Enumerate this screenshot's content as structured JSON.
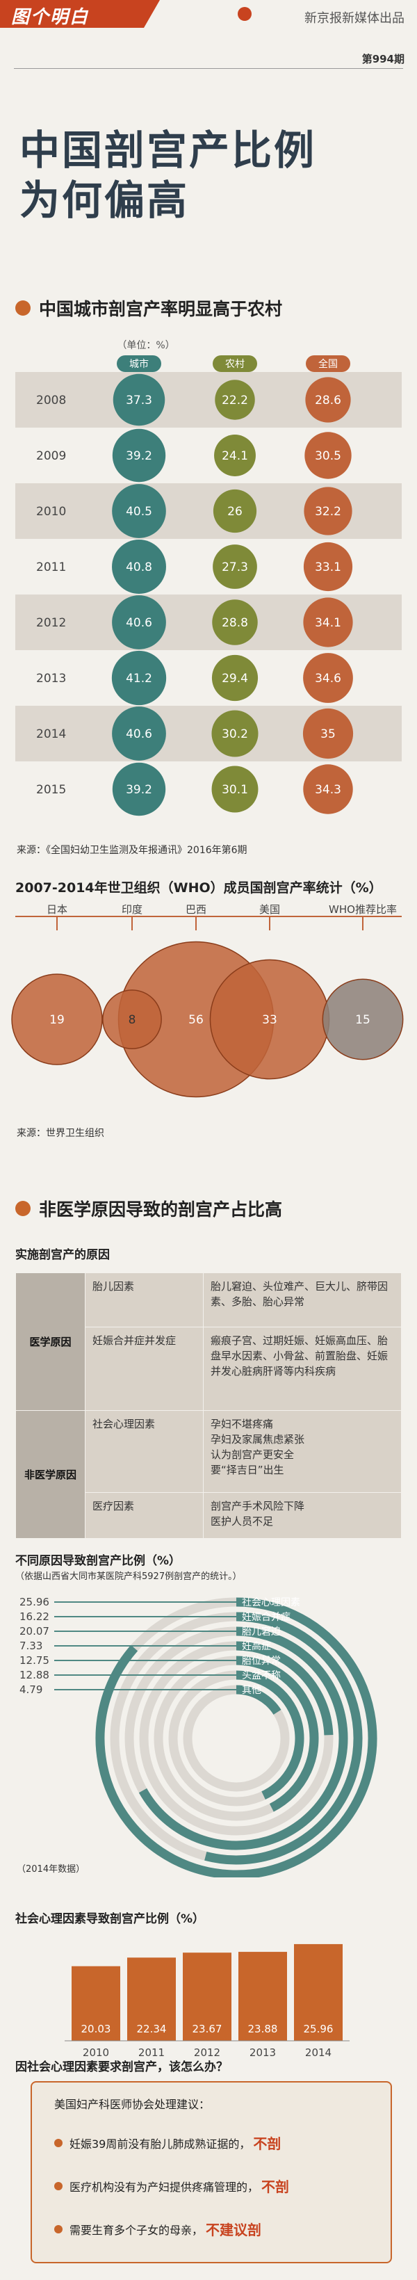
{
  "header": {
    "logo": "图个明白",
    "publisher": "新京报新媒体出品",
    "issue": "第994期"
  },
  "title_lines": [
    "中国剖宫产比例",
    "为何偏高"
  ],
  "section1": {
    "title": "中国城市剖宫产率明显高于农村",
    "unit_label": "（单位：%）",
    "col_labels": [
      "城市",
      "农村",
      "全国"
    ],
    "source": "来源：《全国妇幼卫生监测及年报通讯》2016年第6期"
  },
  "section2": {
    "title": "2007-2014年世卫组织（WHO）成员国剖宫产率统计（%）",
    "source": "来源：世界卫生组织"
  },
  "section3": {
    "title": "非医学原因导致的剖宫产占比高",
    "table_title": "实施剖宫产的原因",
    "rows": [
      {
        "cat": "医学原因",
        "sub": "胎儿因素",
        "detail": "胎儿窘迫、头位难产、巨大儿、脐带因素、多胎、胎心异常"
      },
      {
        "cat": "",
        "sub": "妊娠合并症并发症",
        "detail": "瘢痕子宫、过期妊娠、妊娠高血压、胎盘早水因素、小骨盆、前置胎盘、妊娠并发心脏病肝肾等内科疾病"
      },
      {
        "cat": "非医学原因",
        "sub": "社会心理因素",
        "detail": "孕妇不堪疼痛\n孕妇及家属焦虑紧张\n认为剖宫产更安全\n要“择吉日”出生"
      },
      {
        "cat": "",
        "sub": "医疗因素",
        "detail": "剖宫产手术风险下降\n医护人员不足"
      }
    ]
  },
  "section4": {
    "title": "不同原因导致剖宫产比例（%）",
    "subtitle": "（依据山西省大同市某医院产科5927例剖宫产的统计。）",
    "year_note": "（2014年数据）"
  },
  "section5": {
    "title": "社会心理因素导致剖宫产比例（%）"
  },
  "section6": {
    "title": "因社会心理因素要求剖宫产，该怎么办？",
    "intro": "美国妇产科医师协会处理建议：",
    "items": [
      {
        "text": "妊娠39周前没有胎儿肺成熟证据的，",
        "em": "不剖"
      },
      {
        "text": "医疗机构没有为产妇提供疼痛管理的，",
        "em": "不剖"
      },
      {
        "text": "需要生育多个子女的母亲，",
        "em": "不建议剖"
      }
    ]
  },
  "colors": {
    "city": "#3d7f7a",
    "rural": "#7f8a38",
    "national": "#c0643a",
    "accent": "#c8431f",
    "gray": "#8c8079"
  },
  "chart_data": [
    {
      "type": "table",
      "title": "中国城市剖宫产率明显高于农村",
      "unit": "%",
      "categories": [
        "2008",
        "2009",
        "2010",
        "2011",
        "2012",
        "2013",
        "2014",
        "2015"
      ],
      "series": [
        {
          "name": "城市",
          "values": [
            37.3,
            39.2,
            40.5,
            40.8,
            40.6,
            41.2,
            40.6,
            39.2
          ]
        },
        {
          "name": "农村",
          "values": [
            22.2,
            24.1,
            26,
            27.3,
            28.8,
            29.4,
            30.2,
            30.1
          ]
        },
        {
          "name": "全国",
          "values": [
            28.6,
            30.5,
            32.2,
            33.1,
            34.1,
            34.6,
            35,
            34.3
          ]
        }
      ]
    },
    {
      "type": "scatter",
      "title": "2007-2014年世卫组织（WHO）成员国剖宫产率统计（%）",
      "categories": [
        "日本",
        "印度",
        "巴西",
        "美国",
        "WHO推荐比率"
      ],
      "values": [
        19,
        8,
        56,
        33,
        15
      ]
    },
    {
      "type": "bar",
      "title": "不同原因导致剖宫产比例（%）",
      "categories": [
        "社会心理因素",
        "妊娠合并症",
        "胎儿窘迫",
        "妊高症",
        "胎位异常",
        "头盆不称",
        "其他"
      ],
      "values": [
        25.96,
        16.22,
        20.07,
        7.33,
        12.75,
        12.88,
        4.79
      ]
    },
    {
      "type": "bar",
      "title": "社会心理因素导致剖宫产比例（%）",
      "categories": [
        "2010",
        "2011",
        "2012",
        "2013",
        "2014"
      ],
      "values": [
        20.03,
        22.34,
        23.67,
        23.88,
        25.96
      ]
    }
  ]
}
